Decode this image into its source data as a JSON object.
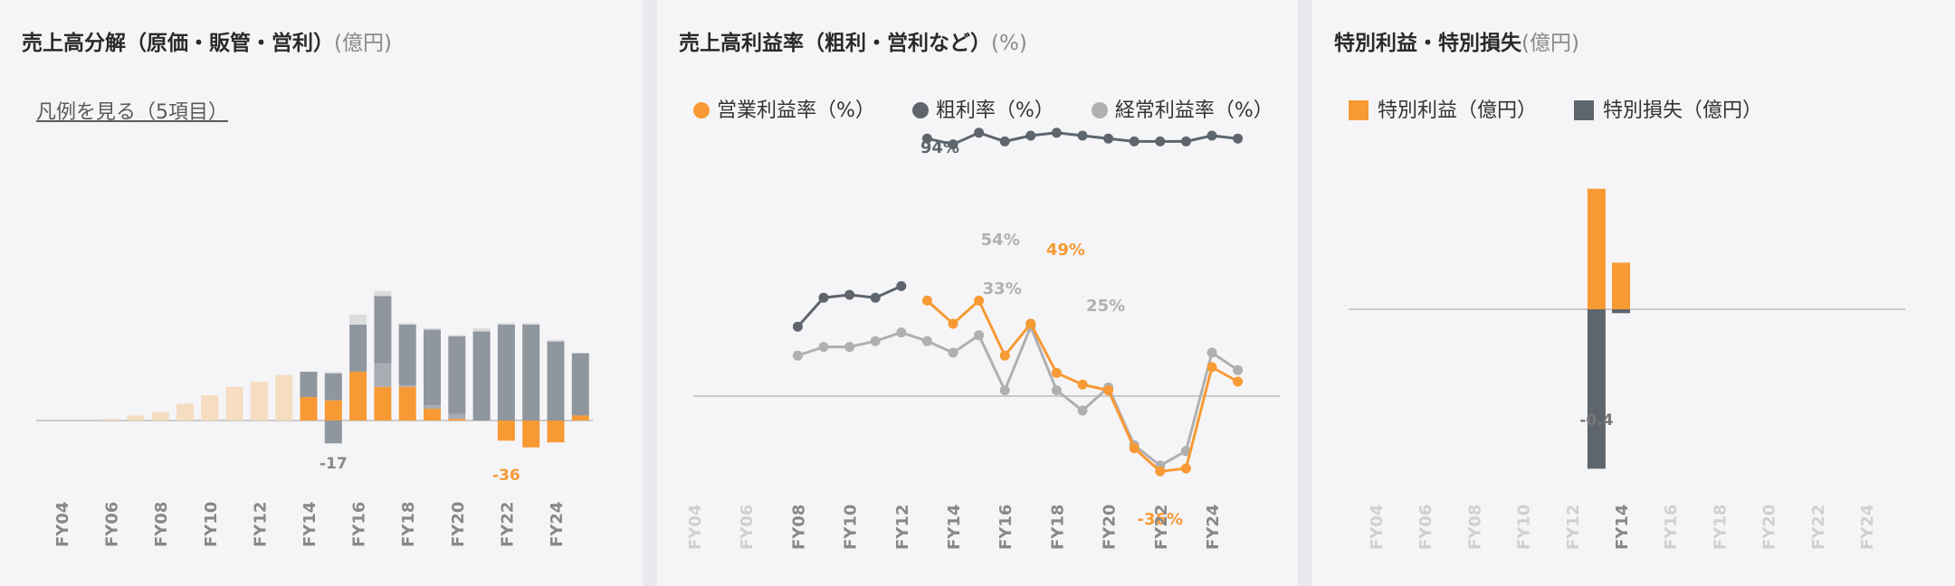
{
  "colors": {
    "orange": "#f79a34",
    "orange_light": "#f6dcc0",
    "gray": "#8f969e",
    "gray_light": "#a9adb3",
    "gray_faint": "#dcdcdc",
    "dark": "#5e656d",
    "lightgray": "#b0b0b0",
    "axis": "#bbbbbb",
    "label_faded": "#d0d0d0",
    "label_normal": "#888888"
  },
  "panels": {
    "p1": {
      "title": "売上高分解（原価・販管・営利）",
      "unit": "(億円)",
      "legend_link": "凡例を見る（5項目）"
    },
    "p2": {
      "title": "売上高利益率（粗利・営利など）",
      "unit": "(%)"
    },
    "p3": {
      "title": "特別利益・特別損失",
      "unit": "(億円)"
    }
  },
  "chart_data": [
    {
      "type": "bar",
      "stacked": true,
      "title": "売上高分解（原価・販管・営利）",
      "unit": "億円",
      "fiscal_years": [
        "FY04",
        "FY05",
        "FY06",
        "FY07",
        "FY08",
        "FY09",
        "FY10",
        "FY11",
        "FY12",
        "FY13",
        "FY14",
        "FY15",
        "FY16",
        "FY17",
        "FY18",
        "FY19",
        "FY20",
        "FY21",
        "FY22",
        "FY23",
        "FY24",
        "FY25"
      ],
      "tick_labels": [
        "FY04",
        "FY06",
        "FY08",
        "FY10",
        "FY12",
        "FY14",
        "FY16",
        "FY18",
        "FY20",
        "FY22",
        "FY24"
      ],
      "ylim": [
        -45,
        140
      ],
      "series": [
        {
          "role": "early_revenue",
          "values": [
            0,
            0,
            1,
            3,
            5,
            10,
            15,
            20,
            23,
            27,
            0,
            0,
            0,
            0,
            0,
            0,
            0,
            0,
            0,
            0,
            0,
            0
          ]
        },
        {
          "role": "operating_profit",
          "values": [
            0,
            0,
            0,
            0,
            0,
            0,
            0,
            0,
            0,
            0,
            14,
            12,
            29,
            20,
            20,
            7,
            1,
            0,
            -12,
            -16,
            -13,
            3
          ]
        },
        {
          "role": "cost_of_sales",
          "values": [
            0,
            0,
            0,
            0,
            0,
            0,
            0,
            0,
            0,
            0,
            0,
            0,
            0,
            14,
            1,
            2,
            3,
            0,
            0,
            0,
            0,
            0
          ]
        },
        {
          "role": "sg_and_a",
          "values": [
            0,
            0,
            0,
            0,
            0,
            0,
            0,
            0,
            0,
            0,
            15,
            16,
            28,
            40,
            36,
            45,
            46,
            53,
            57,
            57,
            47,
            37
          ]
        },
        {
          "role": "other",
          "values": [
            0,
            0,
            0,
            0,
            0,
            0,
            0,
            0,
            0,
            0,
            0,
            1,
            6,
            3,
            1,
            1,
            1,
            2,
            1,
            1,
            1,
            0
          ]
        }
      ],
      "bar_bottom_negatives": [
        {
          "x": "FY15",
          "value": -17
        }
      ],
      "annotations": [
        {
          "x": "FY15",
          "label": "-17",
          "color": "gray"
        },
        {
          "x": "FY22",
          "label": "-36",
          "color": "orange"
        }
      ]
    },
    {
      "type": "line",
      "title": "売上高利益率（粗利・営利など）",
      "unit": "%",
      "x": [
        "FY04",
        "FY05",
        "FY06",
        "FY07",
        "FY08",
        "FY09",
        "FY10",
        "FY11",
        "FY12",
        "FY13",
        "FY14",
        "FY15",
        "FY16",
        "FY17",
        "FY18",
        "FY19",
        "FY20",
        "FY21",
        "FY22",
        "FY23",
        "FY24",
        "FY25"
      ],
      "tick_labels": [
        "FY04",
        "FY06",
        "FY08",
        "FY10",
        "FY12",
        "FY14",
        "FY16",
        "FY18",
        "FY20",
        "FY22",
        "FY24"
      ],
      "ylim": [
        -50,
        110
      ],
      "series": [
        {
          "name": "営業利益率（%）",
          "color": "orange",
          "values": [
            null,
            null,
            null,
            null,
            null,
            null,
            null,
            null,
            null,
            33,
            25,
            33,
            14,
            25,
            8,
            4,
            2,
            -18,
            -26,
            -25,
            10,
            5
          ]
        },
        {
          "name": "粗利率（%）",
          "color": "dark",
          "values": [
            null,
            null,
            null,
            null,
            24,
            34,
            35,
            34,
            38,
            null,
            null,
            null,
            null,
            25,
            null,
            null,
            null,
            null,
            null,
            null,
            null,
            null
          ]
        },
        {
          "name": "粗利率_upper",
          "color": "dark",
          "values": [
            null,
            null,
            null,
            null,
            null,
            null,
            null,
            null,
            null,
            89,
            87,
            91,
            88,
            90,
            91,
            90,
            89,
            88,
            88,
            88,
            90,
            89
          ]
        },
        {
          "name": "経常利益率（%）",
          "color": "lightgray",
          "values": [
            null,
            null,
            null,
            null,
            14,
            17,
            17,
            19,
            22,
            19,
            15,
            21,
            2,
            24,
            2,
            -5,
            3,
            -17,
            -24,
            -19,
            15,
            9
          ]
        }
      ],
      "data_labels": [
        {
          "text": "94%",
          "color": "dark"
        },
        {
          "text": "54%",
          "color": "gray"
        },
        {
          "text": "33%",
          "color": "lightgray"
        },
        {
          "text": "49%",
          "color": "orange"
        },
        {
          "text": "25%",
          "color": "gray"
        },
        {
          "text": "-36%",
          "color": "orange"
        }
      ]
    },
    {
      "type": "bar",
      "title": "特別利益・特別損失",
      "unit": "億円",
      "x": [
        "FY04",
        "FY05",
        "FY06",
        "FY07",
        "FY08",
        "FY09",
        "FY10",
        "FY11",
        "FY12",
        "FY13",
        "FY14",
        "FY15",
        "FY16",
        "FY17",
        "FY18",
        "FY19",
        "FY20",
        "FY21",
        "FY22",
        "FY23",
        "FY24",
        "FY25"
      ],
      "tick_labels": [
        "FY04",
        "FY06",
        "FY08",
        "FY10",
        "FY12",
        "FY14",
        "FY16",
        "FY18",
        "FY20",
        "FY22",
        "FY24"
      ],
      "ylim": [
        -0.5,
        0.5
      ],
      "series": [
        {
          "name": "特別利益（億円）",
          "color": "orange",
          "values": [
            0,
            0,
            0,
            0,
            0,
            0,
            0,
            0,
            0,
            0.31,
            0.12,
            0,
            0,
            0,
            0,
            0,
            0,
            0,
            0,
            0,
            0,
            0
          ]
        },
        {
          "name": "特別損失（億円）",
          "color": "dark",
          "values": [
            0,
            0,
            0,
            0,
            0,
            0,
            0,
            0,
            0,
            -0.41,
            -0.01,
            0,
            0,
            0,
            0,
            0,
            0,
            0,
            0,
            0,
            0,
            0
          ]
        }
      ],
      "annotations": [
        {
          "x": "FY13",
          "label": "-0.4"
        }
      ]
    }
  ]
}
